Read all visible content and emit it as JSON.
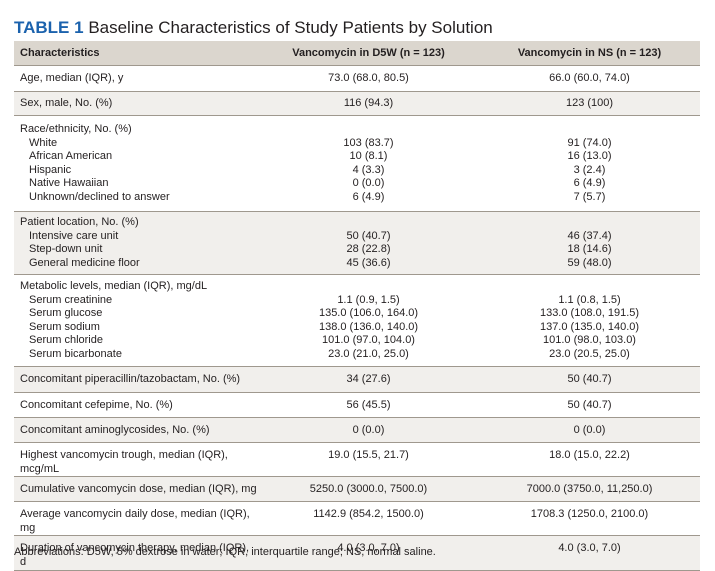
{
  "caption": {
    "label": "TABLE 1",
    "title": "Baseline Characteristics of Study Patients by Solution"
  },
  "header": {
    "col1": "Characteristics",
    "col2": "Vancomycin in D5W (n = 123)",
    "col3": "Vancomycin in NS (n = 123)"
  },
  "rows": [
    {
      "label": "Age, median (IQR), y",
      "d5w": "73.0 (68.0, 80.5)",
      "ns": "66.0 (60.0, 74.0)"
    },
    {
      "label": "Sex, male, No. (%)",
      "d5w": "116 (94.3)",
      "ns": "123 (100)"
    },
    {
      "label": "Race/ethnicity, No. (%)",
      "items": [
        {
          "label": "White",
          "d5w": "103 (83.7)",
          "ns": "91 (74.0)"
        },
        {
          "label": "African American",
          "d5w": "10 (8.1)",
          "ns": "16 (13.0)"
        },
        {
          "label": "Hispanic",
          "d5w": "4 (3.3)",
          "ns": "3 (2.4)"
        },
        {
          "label": "Native Hawaiian",
          "d5w": "0 (0.0)",
          "ns": "6 (4.9)"
        },
        {
          "label": "Unknown/declined to answer",
          "d5w": "6 (4.9)",
          "ns": "7 (5.7)"
        }
      ]
    },
    {
      "label": "Patient location, No. (%)",
      "items": [
        {
          "label": "Intensive care unit",
          "d5w": "50 (40.7)",
          "ns": "46 (37.4)"
        },
        {
          "label": "Step-down unit",
          "d5w": "28 (22.8)",
          "ns": "18 (14.6)"
        },
        {
          "label": "General medicine floor",
          "d5w": "45 (36.6)",
          "ns": "59 (48.0)"
        }
      ]
    },
    {
      "label": "Metabolic levels, median (IQR), mg/dL",
      "items": [
        {
          "label": "Serum creatinine",
          "d5w": "1.1 (0.9, 1.5)",
          "ns": "1.1 (0.8, 1.5)"
        },
        {
          "label": "Serum glucose",
          "d5w": "135.0 (106.0, 164.0)",
          "ns": "133.0 (108.0, 191.5)"
        },
        {
          "label": "Serum sodium",
          "d5w": "138.0 (136.0, 140.0)",
          "ns": "137.0 (135.0, 140.0)"
        },
        {
          "label": "Serum chloride",
          "d5w": "101.0 (97.0, 104.0)",
          "ns": "101.0 (98.0, 103.0)"
        },
        {
          "label": "Serum bicarbonate",
          "d5w": "23.0 (21.0, 25.0)",
          "ns": "23.0 (20.5, 25.0)"
        }
      ]
    },
    {
      "label": "Concomitant piperacillin/tazobactam, No. (%)",
      "d5w": "34 (27.6)",
      "ns": "50 (40.7)"
    },
    {
      "label": "Concomitant cefepime, No. (%)",
      "d5w": "56 (45.5)",
      "ns": "50 (40.7)"
    },
    {
      "label": "Concomitant aminoglycosides, No. (%)",
      "d5w": "0 (0.0)",
      "ns": "0 (0.0)"
    },
    {
      "label": "Highest vancomycin trough, median (IQR), mcg/mL",
      "d5w": "19.0 (15.5, 21.7)",
      "ns": "18.0 (15.0, 22.2)"
    },
    {
      "label": "Cumulative vancomycin dose, median (IQR), mg",
      "d5w": "5250.0 (3000.0, 7500.0)",
      "ns": "7000.0 (3750.0, 11,250.0)"
    },
    {
      "label": "Average vancomycin daily dose, median (IQR), mg",
      "d5w": "1142.9 (854.2, 1500.0)",
      "ns": "1708.3 (1250.0, 2100.0)"
    },
    {
      "label": "Duration of vancomycin therapy, median (IQR), d",
      "d5w": "4.0 (3.0, 7.0)",
      "ns": "4.0 (3.0, 7.0)"
    }
  ],
  "footnote": "Abbreviations: D5W, 5% dextrose in water; IQR, interquartile range; NS, normal saline.",
  "colors": {
    "label_blue": "#1b62ad",
    "header_bg": "#dbd6ce",
    "shade_bg": "#f1efec",
    "rule": "#9f988e"
  }
}
